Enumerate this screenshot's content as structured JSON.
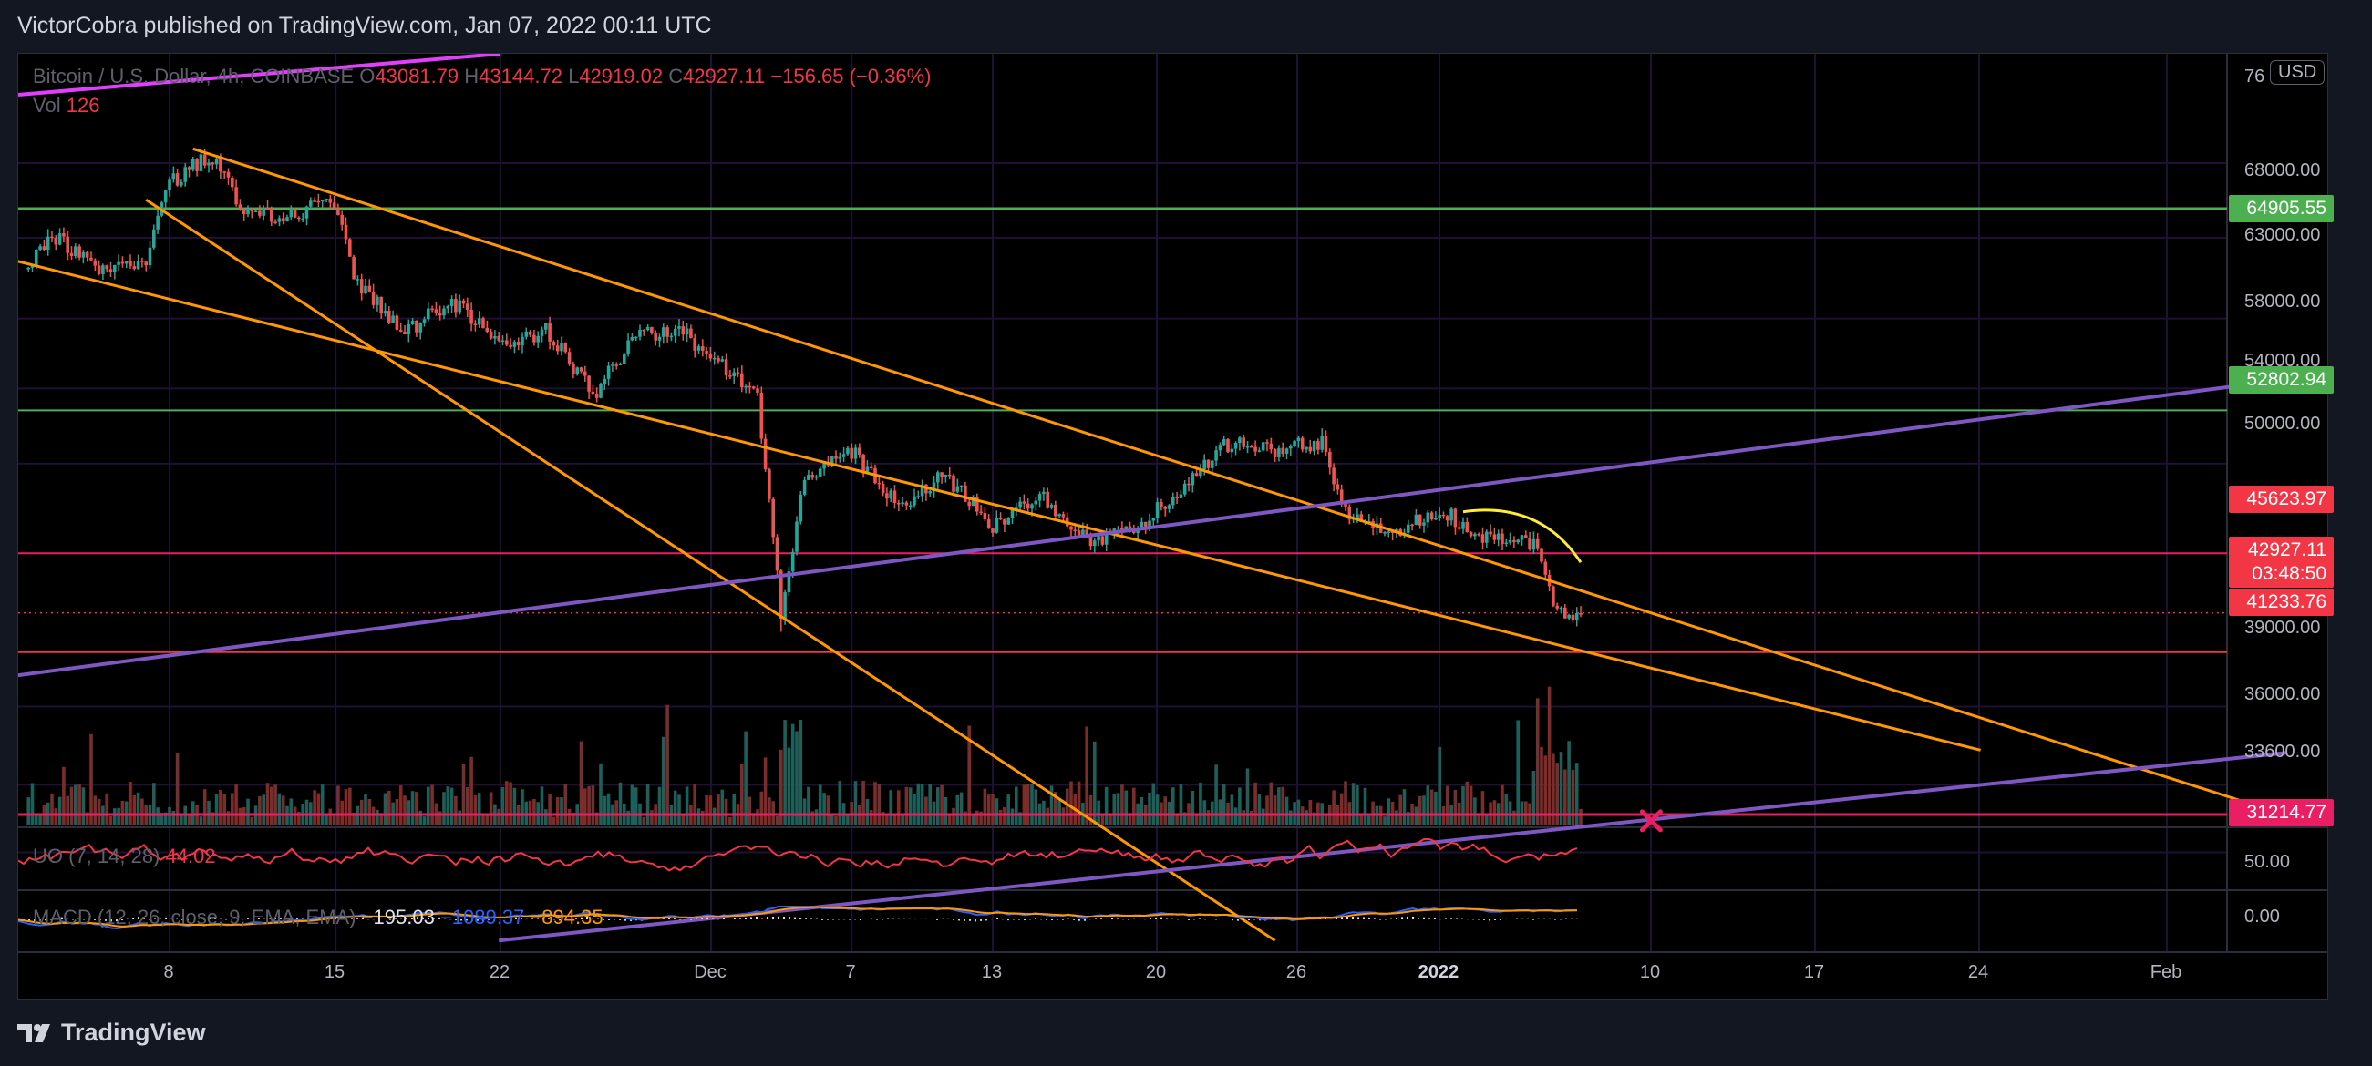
{
  "publish_line": "VictorCobra published on TradingView.com, Jan 07, 2022 00:11 UTC",
  "brand": "TradingView",
  "legend": {
    "symbol": "Bitcoin / U.S. Dollar, 4h, COINBASE",
    "o_label": "O",
    "o_value": "43081.79",
    "h_label": "H",
    "h_value": "43144.72",
    "l_label": "L",
    "l_value": "42919.02",
    "c_label": "C",
    "c_value": "42927.11",
    "change": "−156.65 (−0.36%)",
    "vol_label": "Vol",
    "vol_value": "126"
  },
  "uo_legend": {
    "label": "UO (7, 14, 28)",
    "value": "44.02"
  },
  "macd_legend": {
    "label": "MACD (12, 26, close, 9, EMA, EMA)",
    "hist": "−195.03",
    "macd": "−1089.37",
    "signal": "−894.35"
  },
  "currency": "USD",
  "price_axis": [
    "76",
    "68000.00",
    "63000.00",
    "58000.00",
    "54000.00",
    "50000.00",
    "39000.00",
    "36000.00",
    "33600.00"
  ],
  "uo_axis": "50.00",
  "macd_axis": "0.00",
  "badges": {
    "b1": "64905.55",
    "b2": "52802.94",
    "b3": "45623.97",
    "last_price": "42927.11",
    "countdown": "03:48:50",
    "b4": "41233.76",
    "b5": "31214.77"
  },
  "time_axis": [
    "8",
    "15",
    "22",
    "Dec",
    "7",
    "13",
    "20",
    "26",
    "2022",
    "10",
    "17",
    "24",
    "Feb"
  ],
  "colors": {
    "background": "#000000",
    "up": "#26a69a",
    "down": "#ef5350",
    "trendline": "#ff9800",
    "channel": "#7e57c2",
    "green_level": "#4caf50",
    "red_level": "#f23645",
    "pink_level": "#e91e63",
    "arc": "#ffeb3b",
    "magenta_line": "#e040fb"
  },
  "chart_data": {
    "type": "candlestick",
    "symbol": "Bitcoin / U.S. Dollar",
    "interval": "4h",
    "exchange": "COINBASE",
    "last": {
      "open": 43081.79,
      "high": 43144.72,
      "low": 42919.02,
      "close": 42927.11,
      "change": -156.65,
      "change_pct": -0.36
    },
    "y_scale": "log",
    "ylim": [
      30500,
      78000
    ],
    "x_range": [
      "2021-11-02",
      "2022-02-06"
    ],
    "price_path": [
      [
        "2021-11-02",
        61000
      ],
      [
        "2021-11-03",
        63200
      ],
      [
        "2021-11-05",
        61200
      ],
      [
        "2021-11-07",
        61500
      ],
      [
        "2021-11-08",
        66500
      ],
      [
        "2021-11-09",
        67800
      ],
      [
        "2021-11-10",
        68500
      ],
      [
        "2021-11-11",
        64700
      ],
      [
        "2021-11-13",
        64300
      ],
      [
        "2021-11-15",
        65500
      ],
      [
        "2021-11-16",
        60000
      ],
      [
        "2021-11-18",
        57200
      ],
      [
        "2021-11-20",
        59000
      ],
      [
        "2021-11-22",
        56500
      ],
      [
        "2021-11-24",
        57300
      ],
      [
        "2021-11-26",
        53600
      ],
      [
        "2021-11-28",
        57200
      ],
      [
        "2021-11-30",
        57000
      ],
      [
        "2021-12-03",
        53500
      ],
      [
        "2021-12-04",
        43000
      ],
      [
        "2021-12-05",
        49200
      ],
      [
        "2021-12-07",
        50600
      ],
      [
        "2021-12-09",
        48000
      ],
      [
        "2021-12-11",
        49400
      ],
      [
        "2021-12-13",
        47000
      ],
      [
        "2021-12-15",
        48400
      ],
      [
        "2021-12-17",
        46200
      ],
      [
        "2021-12-19",
        46800
      ],
      [
        "2021-12-21",
        48800
      ],
      [
        "2021-12-23",
        51000
      ],
      [
        "2021-12-25",
        50700
      ],
      [
        "2021-12-27",
        51200
      ],
      [
        "2021-12-28",
        47500
      ],
      [
        "2021-12-30",
        46500
      ],
      [
        "2022-01-01",
        47700
      ],
      [
        "2022-01-03",
        46300
      ],
      [
        "2022-01-05",
        46000
      ],
      [
        "2022-01-06",
        43100
      ],
      [
        "2022-01-07",
        42927
      ]
    ],
    "horizontal_levels": [
      64905.55,
      52802.94,
      45623.97,
      41233.76,
      31214.77
    ],
    "indicators": {
      "volume": {
        "last": 126
      },
      "ultimate_oscillator": {
        "params": "7, 14, 28",
        "value": 44.02
      },
      "macd": {
        "params": "12, 26, close, 9, EMA, EMA",
        "histogram": -195.03,
        "macd": -1089.37,
        "signal": -894.35
      }
    }
  }
}
